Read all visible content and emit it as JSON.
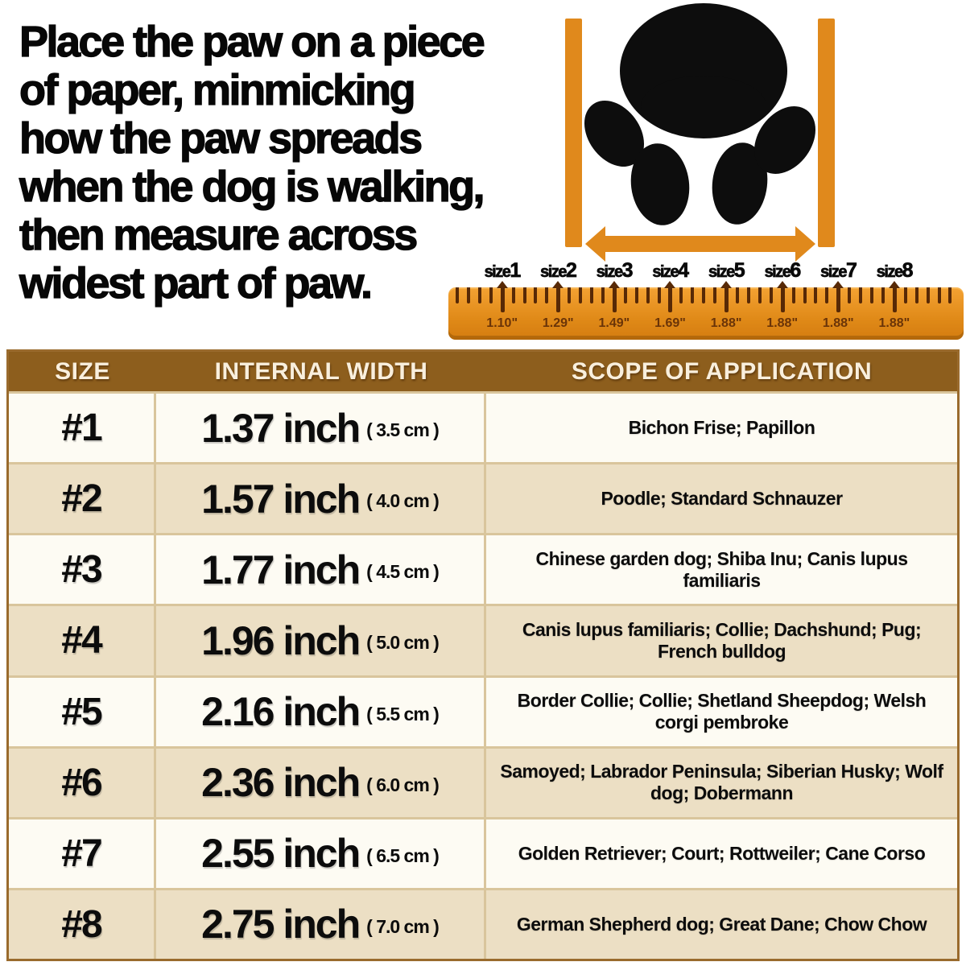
{
  "instructions": {
    "text": "Place the paw on a piece\nof paper, minmicking\nhow the paw spreads\nwhen the dog is walking,\nthen measure across\nwidest part of paw."
  },
  "diagram": {
    "icon": "dog-paw-print",
    "colors": {
      "orange": "#e0891c",
      "paw_black": "#0d0d0d"
    }
  },
  "ruler": {
    "colors": {
      "body": "#e8921f",
      "tick": "#572906",
      "label": "#6a3408"
    },
    "sizes": [
      {
        "label_prefix": "size",
        "label_num": "1",
        "width_in": "1.10\""
      },
      {
        "label_prefix": "size",
        "label_num": "2",
        "width_in": "1.29\""
      },
      {
        "label_prefix": "size",
        "label_num": "3",
        "width_in": "1.49\""
      },
      {
        "label_prefix": "size",
        "label_num": "4",
        "width_in": "1.69\""
      },
      {
        "label_prefix": "size",
        "label_num": "5",
        "width_in": "1.88\""
      },
      {
        "label_prefix": "size",
        "label_num": "6",
        "width_in": "1.88\""
      },
      {
        "label_prefix": "size",
        "label_num": "7",
        "width_in": "1.88\""
      },
      {
        "label_prefix": "size",
        "label_num": "8",
        "width_in": "1.88\""
      }
    ]
  },
  "table": {
    "colors": {
      "header_bg": "#8d5e1d",
      "header_text": "#f9efdd",
      "row_alt_bg": "#ecdfc4",
      "grid_line": "#d9c59c"
    },
    "headers": [
      "SIZE",
      "INTERNAL WIDTH",
      "SCOPE OF APPLICATION"
    ],
    "rows": [
      {
        "size": "#1",
        "inch": "1.37 inch",
        "cm": "( 3.5 cm )",
        "scope": "Bichon Frise; Papillon"
      },
      {
        "size": "#2",
        "inch": "1.57 inch",
        "cm": "( 4.0 cm )",
        "scope": "Poodle; Standard Schnauzer"
      },
      {
        "size": "#3",
        "inch": "1.77 inch",
        "cm": "( 4.5 cm )",
        "scope": "Chinese garden dog; Shiba Inu; Canis lupus familiaris"
      },
      {
        "size": "#4",
        "inch": "1.96 inch",
        "cm": "( 5.0 cm )",
        "scope": "Canis lupus familiaris; Collie; Dachshund; Pug; French bulldog"
      },
      {
        "size": "#5",
        "inch": "2.16 inch",
        "cm": "( 5.5 cm )",
        "scope": "Border Collie; Collie; Shetland Sheepdog; Welsh corgi pembroke"
      },
      {
        "size": "#6",
        "inch": "2.36 inch",
        "cm": "( 6.0 cm )",
        "scope": "Samoyed; Labrador Peninsula; Siberian Husky; Wolf dog; Dobermann"
      },
      {
        "size": "#7",
        "inch": "2.55 inch",
        "cm": "( 6.5 cm )",
        "scope": "Golden Retriever; Court; Rottweiler; Cane Corso"
      },
      {
        "size": "#8",
        "inch": "2.75 inch",
        "cm": "( 7.0 cm )",
        "scope": "German Shepherd dog; Great Dane; Chow Chow"
      }
    ]
  }
}
